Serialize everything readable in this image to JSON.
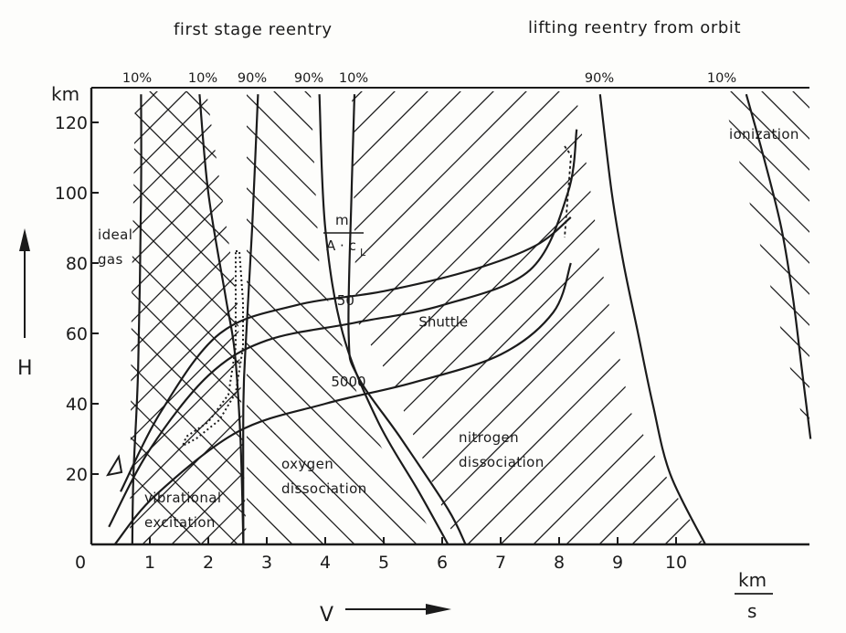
{
  "header": {
    "left": "first stage reentry",
    "right": "lifting reentry from orbit"
  },
  "chart_data": {
    "type": "line",
    "xlabel": "V",
    "x_unit": {
      "num": "km",
      "den": "s"
    },
    "ylabel": "H",
    "y_unit": "km",
    "xlim": [
      0,
      12.3
    ],
    "ylim": [
      0,
      130
    ],
    "x_ticks": [
      {
        "value": 0,
        "label": "0"
      },
      {
        "value": 1,
        "label": "1"
      },
      {
        "value": 2,
        "label": "2"
      },
      {
        "value": 3,
        "label": "3"
      },
      {
        "value": 4,
        "label": "4"
      },
      {
        "value": 5,
        "label": "5"
      },
      {
        "value": 6,
        "label": "6"
      },
      {
        "value": 7,
        "label": "7"
      },
      {
        "value": 8,
        "label": "8"
      },
      {
        "value": 9,
        "label": "9"
      },
      {
        "value": 10,
        "label": "10"
      }
    ],
    "y_ticks": [
      {
        "value": 20,
        "label": "20"
      },
      {
        "value": 40,
        "label": "40"
      },
      {
        "value": 60,
        "label": "60"
      },
      {
        "value": 80,
        "label": "80"
      },
      {
        "value": 100,
        "label": "100"
      },
      {
        "value": 120,
        "label": "120"
      }
    ],
    "boundary_labels": [
      {
        "label": "10%",
        "x": 1.0
      },
      {
        "label": "10%",
        "x": 2.0
      },
      {
        "label": "90%",
        "x": 2.8
      },
      {
        "label": "90%",
        "x": 3.9
      },
      {
        "label": "10%",
        "x": 4.6
      },
      {
        "label": "90%",
        "x": 8.8
      },
      {
        "label": "10%",
        "x": 11.0
      }
    ],
    "boundaries": [
      {
        "name": "vibrational-10",
        "points": [
          [
            0.85,
            128
          ],
          [
            0.85,
            100
          ],
          [
            0.8,
            50
          ],
          [
            0.72,
            20
          ],
          [
            0.7,
            0
          ]
        ]
      },
      {
        "name": "vibrational-90",
        "points": [
          [
            1.85,
            128
          ],
          [
            2.0,
            100
          ],
          [
            2.3,
            70
          ],
          [
            2.45,
            55
          ],
          [
            2.55,
            30
          ],
          [
            2.6,
            0
          ]
        ]
      },
      {
        "name": "oxygen-10",
        "points": [
          [
            2.85,
            128
          ],
          [
            2.75,
            90
          ],
          [
            2.65,
            60
          ],
          [
            2.6,
            40
          ],
          [
            2.6,
            0
          ]
        ]
      },
      {
        "name": "oxygen-90",
        "points": [
          [
            3.9,
            128
          ],
          [
            4.0,
            90
          ],
          [
            4.3,
            60
          ],
          [
            4.9,
            35
          ],
          [
            5.6,
            15
          ],
          [
            6.1,
            0
          ]
        ]
      },
      {
        "name": "nitrogen-10",
        "points": [
          [
            4.5,
            128
          ],
          [
            4.45,
            100
          ],
          [
            4.4,
            60
          ],
          [
            4.55,
            48
          ],
          [
            5.3,
            30
          ],
          [
            6.1,
            10
          ],
          [
            6.4,
            0
          ]
        ]
      },
      {
        "name": "nitrogen-90",
        "points": [
          [
            8.7,
            128
          ],
          [
            8.9,
            100
          ],
          [
            9.1,
            80
          ],
          [
            9.35,
            60
          ],
          [
            9.6,
            40
          ],
          [
            9.9,
            20
          ],
          [
            10.5,
            0
          ]
        ]
      },
      {
        "name": "ionization-10",
        "points": [
          [
            11.2,
            128
          ],
          [
            11.5,
            110
          ],
          [
            11.8,
            90
          ],
          [
            12.0,
            70
          ],
          [
            12.15,
            50
          ],
          [
            12.3,
            30
          ]
        ]
      }
    ],
    "series": [
      {
        "name": "50",
        "points": [
          [
            0.5,
            15
          ],
          [
            1.2,
            38
          ],
          [
            2.2,
            60
          ],
          [
            3.5,
            68
          ],
          [
            5.0,
            72
          ],
          [
            6.5,
            78
          ],
          [
            7.6,
            85
          ],
          [
            8.2,
            93
          ]
        ]
      },
      {
        "name": "Shuttle",
        "points": [
          [
            0.3,
            5
          ],
          [
            1.0,
            27
          ],
          [
            2.0,
            48
          ],
          [
            3.0,
            58
          ],
          [
            4.5,
            63
          ],
          [
            6.0,
            68
          ],
          [
            7.5,
            78
          ],
          [
            8.15,
            100
          ],
          [
            8.3,
            118
          ]
        ]
      },
      {
        "name": "5000",
        "points": [
          [
            0.4,
            0
          ],
          [
            1.1,
            14
          ],
          [
            2.5,
            32
          ],
          [
            4.0,
            40
          ],
          [
            5.5,
            46
          ],
          [
            7.0,
            54
          ],
          [
            7.9,
            66
          ],
          [
            8.2,
            80
          ]
        ]
      }
    ],
    "parameter_label": {
      "num": "m",
      "den": "A · c",
      "sub": "L"
    },
    "region_labels": [
      {
        "text": [
          "ideal",
          "gas"
        ]
      },
      {
        "text": [
          "vibrational",
          "excitation"
        ]
      },
      {
        "text": [
          "oxygen",
          "dissociation"
        ]
      },
      {
        "text": [
          "nitrogen",
          "dissociation"
        ]
      },
      {
        "text": [
          "ionization"
        ]
      }
    ],
    "colors": {
      "ink": "#1b1b1b",
      "paper": "#fdfdfb"
    }
  }
}
